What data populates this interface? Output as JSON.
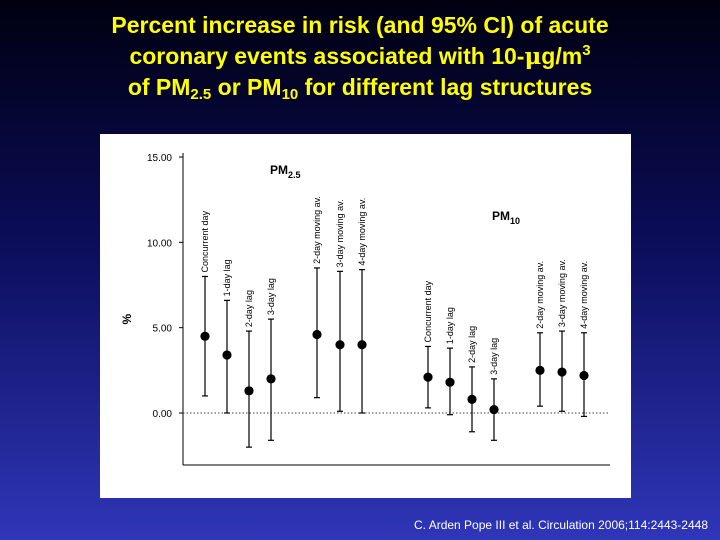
{
  "slide": {
    "title_line1": "Percent increase in risk (and 95% CI) of acute",
    "title_line2_a": "coronary events associated with 10-",
    "title_line2_mu": "μ",
    "title_line2_b": "g/m",
    "title_line2_sup": "3",
    "title_line3_a": "of PM",
    "title_line3_sub1": "2.5",
    "title_line3_b": " or PM",
    "title_line3_sub2": "10",
    "title_line3_c": " for different lag structures",
    "citation": "C. Arden Pope III et al. Circulation 2006;114:2443-2448"
  },
  "chart_data": {
    "type": "scatter",
    "ylabel": "%",
    "ylim": [
      -3,
      15
    ],
    "yticks": [
      "15.00",
      "10.00",
      "5.00",
      "0.00"
    ],
    "reference_line": 0,
    "groups": [
      {
        "label_main": "PM",
        "label_sub": "2.5",
        "points": [
          {
            "label": "Concurrent day",
            "value": 4.5,
            "lower": 1.0,
            "upper": 8.0
          },
          {
            "label": "1-day lag",
            "value": 3.4,
            "lower": 0.0,
            "upper": 6.6
          },
          {
            "label": "2-day lag",
            "value": 1.3,
            "lower": -2.0,
            "upper": 4.8
          },
          {
            "label": "3-day lag",
            "value": 2.0,
            "lower": -1.6,
            "upper": 5.5
          },
          {
            "label": "2-day moving av.",
            "value": 4.6,
            "lower": 0.9,
            "upper": 8.5
          },
          {
            "label": "3-day moving av.",
            "value": 4.0,
            "lower": 0.1,
            "upper": 8.3
          },
          {
            "label": "4-day moving av.",
            "value": 4.0,
            "lower": 0.0,
            "upper": 8.4
          }
        ]
      },
      {
        "label_main": "PM",
        "label_sub": "10",
        "points": [
          {
            "label": "Concurrent day",
            "value": 2.1,
            "lower": 0.3,
            "upper": 3.9
          },
          {
            "label": "1-day lag",
            "value": 1.8,
            "lower": -0.1,
            "upper": 3.8
          },
          {
            "label": "2-day lag",
            "value": 0.8,
            "lower": -1.1,
            "upper": 2.7
          },
          {
            "label": "3-day lag",
            "value": 0.2,
            "lower": -1.6,
            "upper": 2.0
          },
          {
            "label": "2-day moving av.",
            "value": 2.5,
            "lower": 0.4,
            "upper": 4.7
          },
          {
            "label": "3-day moving av.",
            "value": 2.4,
            "lower": 0.1,
            "upper": 4.8
          },
          {
            "label": "4-day moving av.",
            "value": 2.2,
            "lower": -0.2,
            "upper": 4.7
          }
        ]
      }
    ]
  }
}
